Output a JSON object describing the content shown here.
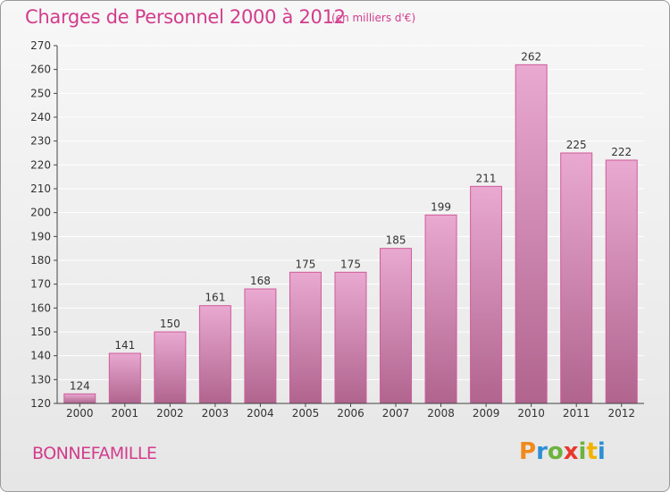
{
  "header": {
    "title": "Charges de Personnel 2000 à 2012",
    "subtitle": "(en milliers d'€)"
  },
  "footer": {
    "commune": "BONNEFAMILLE",
    "logo": "Proxiti"
  },
  "colors": {
    "accent": "#d23c8c",
    "bar_light": "#e9a9d1",
    "bar_dark": "#b0648e",
    "logo_letters": [
      "#f08a1c",
      "#2b8fd6",
      "#6cb33e",
      "#e8392a",
      "#6cb33e",
      "#f0b400",
      "#2b8fd6"
    ]
  },
  "chart_data": {
    "type": "bar",
    "categories": [
      "2000",
      "2001",
      "2002",
      "2003",
      "2004",
      "2005",
      "2006",
      "2007",
      "2008",
      "2009",
      "2010",
      "2011",
      "2012"
    ],
    "values": [
      124,
      141,
      150,
      161,
      168,
      175,
      175,
      185,
      199,
      211,
      262,
      225,
      222
    ],
    "title": "Charges de Personnel 2000 à 2012",
    "subtitle": "(en milliers d'€)",
    "xlabel": "",
    "ylabel": "",
    "ylim": [
      120,
      270
    ],
    "yticks": [
      120,
      130,
      140,
      150,
      160,
      170,
      180,
      190,
      200,
      210,
      220,
      230,
      240,
      250,
      260,
      270
    ],
    "grid": true,
    "data_labels": true
  }
}
